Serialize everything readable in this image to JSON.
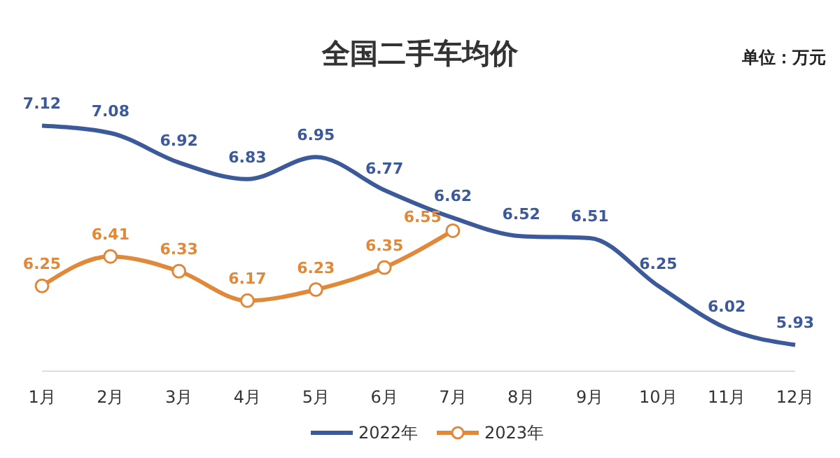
{
  "chart_data": {
    "type": "line",
    "title": "全国二手车均价",
    "annotations": [
      "单位：万元"
    ],
    "categories": [
      "1月",
      "2月",
      "3月",
      "4月",
      "5月",
      "6月",
      "7月",
      "8月",
      "9月",
      "10月",
      "11月",
      "12月"
    ],
    "series": [
      {
        "name": "2022年",
        "color": "#3c5a9a",
        "marker": "none",
        "values": [
          7.12,
          7.08,
          6.92,
          6.83,
          6.95,
          6.77,
          6.62,
          6.52,
          6.51,
          6.25,
          6.02,
          5.93
        ]
      },
      {
        "name": "2023年",
        "color": "#e0893a",
        "marker": "circle",
        "values": [
          6.25,
          6.41,
          6.33,
          6.17,
          6.23,
          6.35,
          6.55,
          null,
          null,
          null,
          null,
          null
        ]
      }
    ],
    "data_labels": true,
    "legend": "bottom"
  }
}
